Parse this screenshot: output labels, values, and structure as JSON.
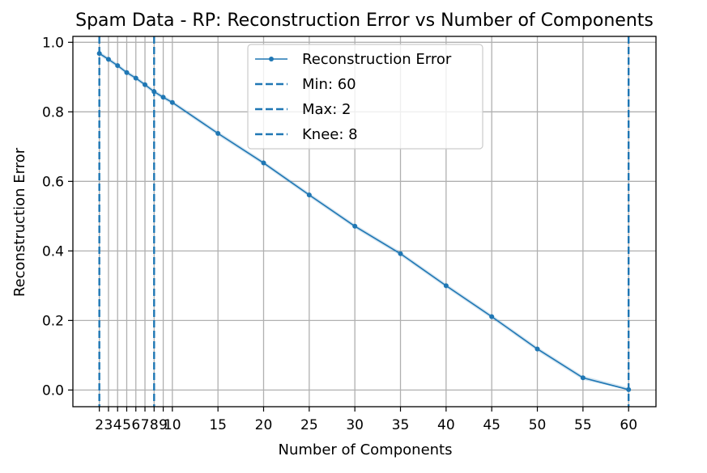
{
  "chart_data": {
    "type": "line",
    "title": "Spam Data - RP: Reconstruction Error vs Number of Components",
    "xlabel": "Number of Components",
    "ylabel": "Reconstruction Error",
    "xlim": [
      -0.9,
      63.0
    ],
    "ylim": [
      -0.048,
      1.017
    ],
    "xticks": [
      2,
      3,
      4,
      5,
      6,
      7,
      8,
      9,
      10,
      15,
      20,
      25,
      30,
      35,
      40,
      45,
      50,
      55,
      60
    ],
    "yticks": [
      0.0,
      0.2,
      0.4,
      0.6,
      0.8,
      1.0
    ],
    "ytick_labels": [
      "0.0",
      "0.2",
      "0.4",
      "0.6",
      "0.8",
      "1.0"
    ],
    "grid": true,
    "legend_position": "upper-center",
    "series": [
      {
        "name": "Reconstruction Error",
        "color": "#1f77b4",
        "marker": "dot",
        "x": [
          2,
          3,
          4,
          5,
          6,
          7,
          8,
          9,
          10,
          15,
          20,
          25,
          30,
          35,
          40,
          45,
          50,
          55,
          60
        ],
        "y": [
          0.968,
          0.951,
          0.933,
          0.913,
          0.897,
          0.878,
          0.858,
          0.842,
          0.827,
          0.738,
          0.653,
          0.561,
          0.471,
          0.392,
          0.3,
          0.211,
          0.118,
          0.035,
          0.001
        ],
        "band_width": 0.006
      }
    ],
    "vlines": [
      {
        "label": "Min: 60",
        "x": 60,
        "color": "#1f77b4",
        "style": "dashed"
      },
      {
        "label": "Max: 2",
        "x": 2,
        "color": "#1f77b4",
        "style": "dashed"
      },
      {
        "label": "Knee: 8",
        "x": 8,
        "color": "#1f77b4",
        "style": "dashed"
      }
    ]
  }
}
